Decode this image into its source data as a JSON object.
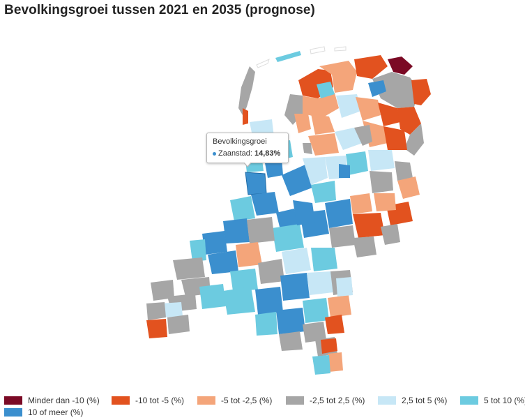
{
  "title": "Bevolkingsgroei tussen 2021 en 2035 (prognose)",
  "tooltip": {
    "heading": "Bevolkingsgroei",
    "municipality": "Zaanstad",
    "value": "14,83%"
  },
  "legend": [
    {
      "label": "Minder dan -10 (%)",
      "color": "#7b0a25"
    },
    {
      "label": "-10 tot -5 (%)",
      "color": "#e2521f"
    },
    {
      "label": "-5 tot -2,5 (%)",
      "color": "#f4a57a"
    },
    {
      "label": "-2,5 tot 2,5 (%)",
      "color": "#a6a6a6"
    },
    {
      "label": "2,5 tot 5 (%)",
      "color": "#c7e7f6"
    },
    {
      "label": "5 tot 10 (%)",
      "color": "#6ccbe0"
    },
    {
      "label": "10 of meer (%)",
      "color": "#3b8fce"
    }
  ]
}
